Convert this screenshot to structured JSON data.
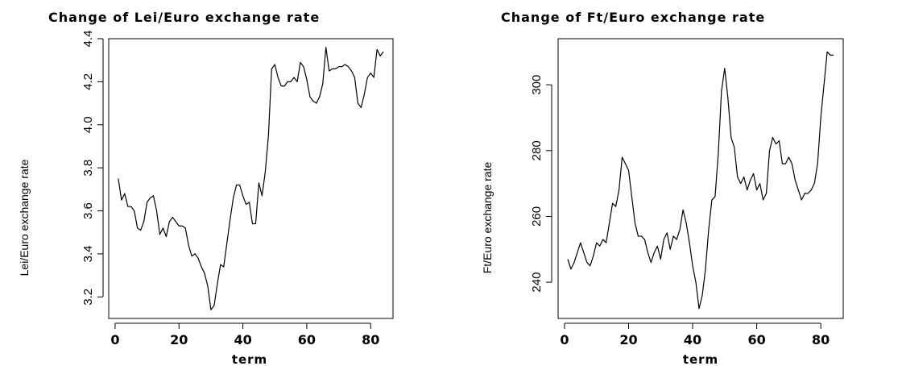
{
  "chart_data": [
    {
      "type": "line",
      "title": "Change of Lei/Euro exchange rate",
      "xlabel": "term",
      "ylabel": "Lei/Euro exchange rate",
      "xlim": [
        -2,
        87
      ],
      "ylim": [
        3.1,
        4.4
      ],
      "xticks": [
        0,
        20,
        40,
        60,
        80
      ],
      "yticks": [
        3.2,
        3.4,
        3.6,
        3.8,
        4.0,
        4.2,
        4.4
      ],
      "ytick_labels": [
        "3.2",
        "3.4",
        "3.6",
        "3.8",
        "4.0",
        "4.2",
        "4.4"
      ],
      "series": [
        {
          "x": [
            1,
            2,
            3,
            4,
            5,
            6,
            7,
            8,
            9,
            10,
            11,
            12,
            13,
            14,
            15,
            16,
            17,
            18,
            19,
            20,
            21,
            22,
            23,
            24,
            25,
            26,
            27,
            28,
            29,
            30,
            31,
            32,
            33,
            34,
            35,
            36,
            37,
            38,
            39,
            40,
            41,
            42,
            43,
            44,
            45,
            46,
            47,
            48,
            49,
            50,
            51,
            52,
            53,
            54,
            55,
            56,
            57,
            58,
            59,
            60,
            61,
            62,
            63,
            64,
            65,
            66,
            67,
            68,
            69,
            70,
            71,
            72,
            73,
            74,
            75,
            76,
            77,
            78,
            79,
            80,
            81,
            82,
            83,
            84
          ],
          "values": [
            3.75,
            3.65,
            3.68,
            3.62,
            3.62,
            3.6,
            3.52,
            3.51,
            3.55,
            3.64,
            3.66,
            3.67,
            3.6,
            3.49,
            3.52,
            3.48,
            3.55,
            3.57,
            3.55,
            3.53,
            3.53,
            3.52,
            3.44,
            3.39,
            3.4,
            3.38,
            3.34,
            3.31,
            3.25,
            3.14,
            3.16,
            3.26,
            3.35,
            3.34,
            3.45,
            3.56,
            3.66,
            3.72,
            3.72,
            3.67,
            3.63,
            3.64,
            3.54,
            3.54,
            3.73,
            3.67,
            3.78,
            3.95,
            4.26,
            4.28,
            4.22,
            4.18,
            4.18,
            4.2,
            4.2,
            4.22,
            4.2,
            4.29,
            4.27,
            4.21,
            4.13,
            4.11,
            4.1,
            4.13,
            4.19,
            4.36,
            4.25,
            4.26,
            4.26,
            4.27,
            4.27,
            4.28,
            4.27,
            4.25,
            4.22,
            4.1,
            4.08,
            4.14,
            4.22,
            4.24,
            4.22,
            4.35,
            4.32,
            4.34
          ]
        }
      ]
    },
    {
      "type": "line",
      "title": "Change of Ft/Euro exchange rate",
      "xlabel": "term",
      "ylabel": "Ft/Euro exchange rate",
      "xlim": [
        -2,
        87
      ],
      "ylim": [
        229,
        314
      ],
      "xticks": [
        0,
        20,
        40,
        60,
        80
      ],
      "yticks": [
        240,
        260,
        280,
        300
      ],
      "ytick_labels": [
        "240",
        "260",
        "280",
        "300"
      ],
      "series": [
        {
          "x": [
            1,
            2,
            3,
            4,
            5,
            6,
            7,
            8,
            9,
            10,
            11,
            12,
            13,
            14,
            15,
            16,
            17,
            18,
            19,
            20,
            21,
            22,
            23,
            24,
            25,
            26,
            27,
            28,
            29,
            30,
            31,
            32,
            33,
            34,
            35,
            36,
            37,
            38,
            39,
            40,
            41,
            42,
            43,
            44,
            45,
            46,
            47,
            48,
            49,
            50,
            51,
            52,
            53,
            54,
            55,
            56,
            57,
            58,
            59,
            60,
            61,
            62,
            63,
            64,
            65,
            66,
            67,
            68,
            69,
            70,
            71,
            72,
            73,
            74,
            75,
            76,
            77,
            78,
            79,
            80,
            81,
            82,
            83,
            84
          ],
          "values": [
            247,
            244,
            246,
            249,
            252,
            249,
            246,
            245,
            248,
            252,
            251,
            253,
            252,
            258,
            264,
            263,
            268,
            278,
            276,
            274,
            266,
            258,
            254,
            254,
            253,
            249,
            246,
            249,
            251,
            247,
            253,
            255,
            250,
            254,
            253,
            256,
            262,
            258,
            252,
            245,
            240,
            232,
            236,
            244,
            256,
            265,
            266,
            279,
            298,
            305,
            296,
            284,
            281,
            272,
            270,
            272,
            268,
            271,
            273,
            268,
            270,
            265,
            267,
            280,
            284,
            282,
            283,
            276,
            276,
            278,
            276,
            271,
            268,
            265,
            267,
            267,
            268,
            270,
            276,
            290,
            300,
            310,
            309,
            309
          ]
        }
      ]
    }
  ]
}
